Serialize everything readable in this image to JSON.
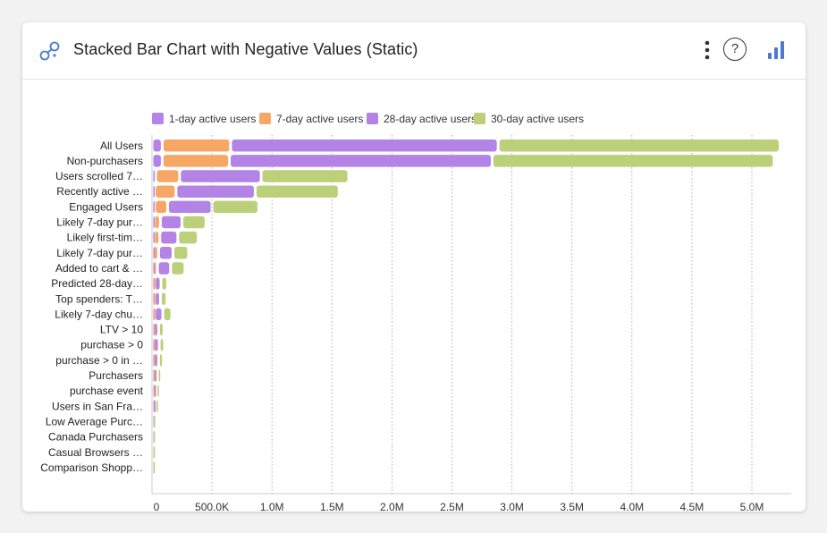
{
  "header": {
    "title": "Stacked Bar Chart with Negative Values (Static)",
    "icons": [
      "connections-icon",
      "more-vert-icon",
      "help-icon",
      "bar-chart-icon"
    ],
    "help_glyph": "?"
  },
  "colors": {
    "series": [
      "#b384e6",
      "#f7a765",
      "#b384e6",
      "#bcd07a"
    ],
    "grid": "#999999",
    "axis": "#cccccc"
  },
  "chart_data": {
    "type": "bar",
    "orientation": "horizontal",
    "stacked": true,
    "title": "Stacked Bar Chart with Negative Values (Static)",
    "legend_position": "top-left",
    "grid": "vertical dotted",
    "xlim": [
      0,
      5300000
    ],
    "x_ticks": [
      0,
      500000,
      1000000,
      1500000,
      2000000,
      2500000,
      3000000,
      3500000,
      4000000,
      4500000,
      5000000
    ],
    "x_tick_labels": [
      "0",
      "500.0K",
      "1.0M",
      "1.5M",
      "2.0M",
      "2.5M",
      "3.0M",
      "3.5M",
      "4.0M",
      "4.5M",
      "5.0M"
    ],
    "categories": [
      "All Users",
      "Non-purchasers",
      "Users scrolled 7…",
      "Recently active …",
      "Engaged Users",
      "Likely 7-day pur…",
      "Likely first-tim…",
      "Likely 7-day pur…",
      "Added to cart & …",
      "Predicted 28-day…",
      "Top spenders: T…",
      "Likely 7-day chu…",
      "LTV > 10",
      "purchase > 0",
      "purchase > 0 in …",
      "Purchasers",
      "purchase event",
      "Users in San Fra…",
      "Low Average Purc…",
      "Canada Purchasers",
      "Casual Browsers …",
      "Comparison Shopp…"
    ],
    "series": [
      {
        "name": "1-day active users",
        "values": [
          85000,
          85000,
          30000,
          20000,
          20000,
          15000,
          15000,
          10000,
          10000,
          5000,
          5000,
          5000,
          5000,
          5000,
          5000,
          5000,
          3000,
          3000,
          0,
          0,
          0,
          0
        ]
      },
      {
        "name": "7-day active users",
        "values": [
          570000,
          560000,
          200000,
          180000,
          110000,
          55000,
          50000,
          45000,
          35000,
          15000,
          15000,
          15000,
          10000,
          10000,
          10000,
          10000,
          8000,
          5000,
          1000,
          0,
          0,
          0
        ]
      },
      {
        "name": "28-day active users",
        "values": [
          2230000,
          2190000,
          680000,
          660000,
          370000,
          180000,
          150000,
          120000,
          110000,
          55000,
          50000,
          70000,
          40000,
          45000,
          40000,
          30000,
          25000,
          20000,
          3000,
          2000,
          1000,
          1000
        ]
      },
      {
        "name": "30-day active users",
        "values": [
          2350000,
          2350000,
          730000,
          700000,
          390000,
          200000,
          170000,
          130000,
          120000,
          55000,
          55000,
          75000,
          45000,
          45000,
          40000,
          35000,
          30000,
          20000,
          3000,
          2000,
          1000,
          1000
        ]
      }
    ]
  }
}
